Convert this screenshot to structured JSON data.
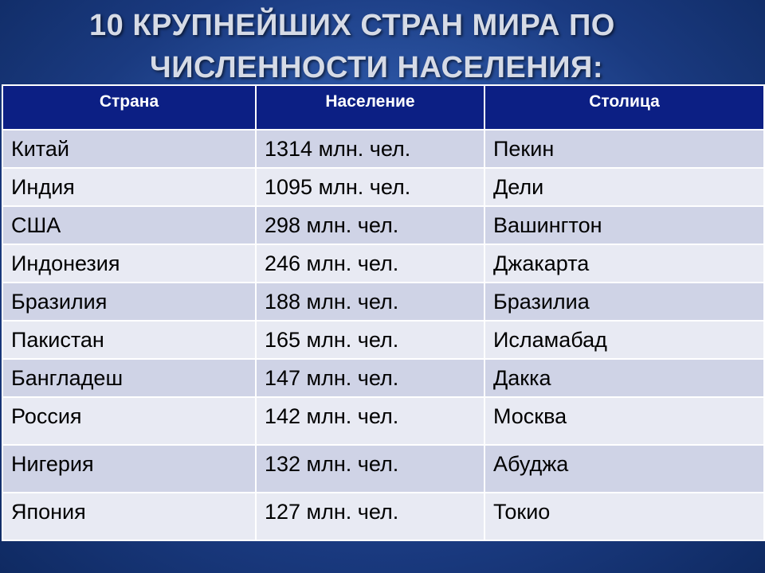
{
  "title": {
    "line1": "10 КРУПНЕЙШИХ СТРАН МИРА ПО",
    "line2": "ЧИСЛЕННОСТИ НАСЕЛЕНИЯ:"
  },
  "table": {
    "headers": [
      "Страна",
      "Население",
      "Столица"
    ],
    "rows": [
      [
        "Китай",
        "1314 млн. чел.",
        "Пекин"
      ],
      [
        "Индия",
        "1095 млн. чел.",
        "Дели"
      ],
      [
        "США",
        "298 млн. чел.",
        "Вашингтон"
      ],
      [
        "Индонезия",
        "246 млн. чел.",
        "Джакарта"
      ],
      [
        "Бразилия",
        "188 млн. чел.",
        "Бразилиа"
      ],
      [
        "Пакистан",
        "165 млн. чел.",
        "Исламабад"
      ],
      [
        "Бангладеш",
        "147 млн. чел.",
        "Дакка"
      ],
      [
        "Россия",
        "142 млн. чел.",
        "Москва"
      ],
      [
        "Нигерия",
        "132 млн. чел.",
        "Абуджа"
      ],
      [
        "Япония",
        "127 млн. чел.",
        "Токио"
      ]
    ]
  },
  "colors": {
    "header_bg": "#0c1f84",
    "row_odd": "#cfd3e6",
    "row_even": "#e8eaf3",
    "background": "#2d57a6"
  }
}
